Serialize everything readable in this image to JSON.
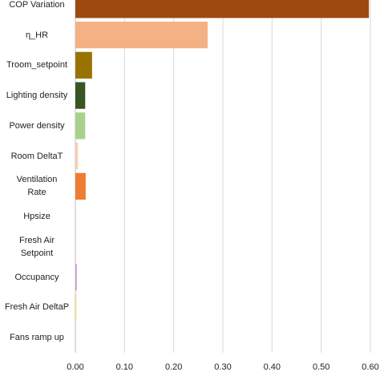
{
  "chart_data": {
    "type": "hbar",
    "categories": [
      "COP Variation",
      "η_HR",
      "Troom_setpoint",
      "Lighting density",
      "Power density",
      "Room DeltaT",
      "Ventilation\nRate",
      "Hpsize",
      "Fresh Air\nSetpoint",
      "Occupancy",
      "Fresh Air DeltaP",
      "Fans ramp up"
    ],
    "values": [
      0.597,
      0.269,
      0.034,
      0.02,
      0.02,
      0.005,
      0.021,
      0,
      0,
      0.003,
      0.002,
      0
    ],
    "colors": [
      "#9c4a0f",
      "#f4b183",
      "#997300",
      "#375623",
      "#a9d18e",
      "#f8cbad",
      "#ed7d31",
      "#a5a5a5",
      "#a5a5a5",
      "#c9a0dc",
      "#ffd966",
      "#a5a5a5"
    ],
    "xlim": [
      0,
      0.6
    ],
    "xticks": [
      {
        "value": 0,
        "label": "0.00"
      },
      {
        "value": 0.1,
        "label": "0.10"
      },
      {
        "value": 0.2,
        "label": "0.20"
      },
      {
        "value": 0.3,
        "label": "0.30"
      },
      {
        "value": 0.4,
        "label": "0.40"
      },
      {
        "value": 0.5,
        "label": "0.50"
      },
      {
        "value": 0.6,
        "label": "0.60"
      }
    ],
    "grid": true
  }
}
